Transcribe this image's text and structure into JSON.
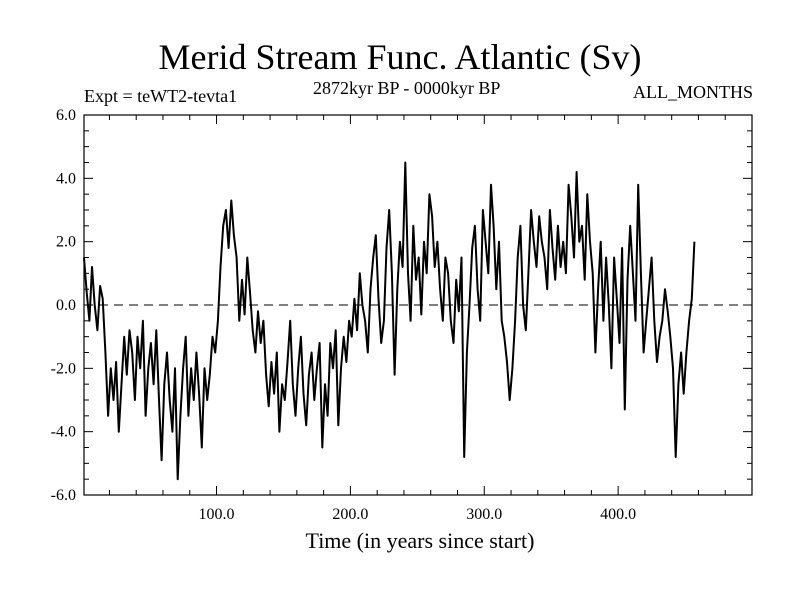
{
  "chart_data": {
    "type": "line",
    "title": "Merid Stream Func. Atlantic (Sv)",
    "subtitle_left": "Expt = teWT2-tevta1",
    "subtitle_center": "2872kyr BP - 0000kyr BP",
    "subtitle_right": "ALL_MONTHS",
    "xlabel": "Time (in years since start)",
    "ylabel": "",
    "xlim": [
      1,
      500
    ],
    "ylim": [
      -6,
      6
    ],
    "xticks": [
      100,
      200,
      300,
      400
    ],
    "xtick_labels": [
      "100.0",
      "200.0",
      "300.0",
      "400.0"
    ],
    "yticks": [
      -6,
      -4,
      -2,
      0,
      2,
      4,
      6
    ],
    "ytick_labels": [
      "-6.0",
      "-4.0",
      "-2.0",
      "0.0",
      "2.0",
      "4.0",
      "6.0"
    ],
    "reference_line": 0,
    "series": [
      {
        "name": "Merid Stream Func. Atlantic",
        "x_start": 1,
        "x_step": 2,
        "values": [
          1.5,
          0.4,
          -0.5,
          1.2,
          0.0,
          -0.8,
          0.6,
          0.2,
          -1.5,
          -3.5,
          -2.0,
          -3.0,
          -1.8,
          -4.0,
          -2.5,
          -1.0,
          -2.2,
          -0.8,
          -1.5,
          -3.0,
          -1.0,
          -2.0,
          -0.5,
          -3.5,
          -2.0,
          -1.2,
          -2.5,
          -0.8,
          -3.0,
          -4.9,
          -2.5,
          -1.5,
          -3.0,
          -4.0,
          -2.0,
          -5.5,
          -3.5,
          -2.0,
          -1.0,
          -3.5,
          -2.0,
          -3.0,
          -1.5,
          -2.8,
          -4.5,
          -2.0,
          -3.0,
          -2.2,
          -1.0,
          -1.5,
          -0.5,
          1.2,
          2.5,
          3.0,
          1.8,
          3.3,
          2.2,
          1.5,
          -0.5,
          0.8,
          -0.3,
          1.5,
          0.4,
          -0.8,
          -1.5,
          -0.2,
          -1.2,
          -0.5,
          -2.2,
          -3.2,
          -1.8,
          -2.8,
          -1.5,
          -4.0,
          -2.5,
          -3.0,
          -1.8,
          -0.5,
          -2.5,
          -3.5,
          -2.0,
          -1.0,
          -2.8,
          -3.8,
          -2.2,
          -1.5,
          -3.0,
          -2.0,
          -1.2,
          -4.5,
          -2.5,
          -3.5,
          -1.2,
          -2.0,
          -0.8,
          -3.8,
          -2.0,
          -1.0,
          -1.8,
          -0.5,
          -1.0,
          0.2,
          -0.8,
          1.0,
          0.0,
          -0.5,
          -1.5,
          0.5,
          1.5,
          2.2,
          0.2,
          -1.2,
          -0.5,
          1.8,
          3.0,
          1.0,
          -2.2,
          0.5,
          2.0,
          1.2,
          4.5,
          1.0,
          -0.5,
          2.5,
          0.8,
          1.5,
          -0.3,
          2.0,
          1.0,
          3.5,
          2.8,
          1.2,
          2.0,
          0.5,
          -0.5,
          1.5,
          1.0,
          -0.5,
          -1.2,
          0.8,
          -0.2,
          1.5,
          -4.8,
          -1.5,
          0.0,
          1.8,
          2.5,
          0.5,
          -0.5,
          3.0,
          2.0,
          1.0,
          3.8,
          2.5,
          0.5,
          2.0,
          -0.5,
          -1.0,
          -1.8,
          -3.0,
          -2.0,
          -0.5,
          1.5,
          2.5,
          0.0,
          -0.8,
          1.0,
          3.0,
          2.0,
          1.2,
          2.8,
          2.0,
          1.5,
          0.5,
          3.0,
          1.8,
          0.8,
          2.5,
          1.2,
          2.0,
          1.0,
          3.8,
          2.8,
          1.5,
          4.2,
          2.0,
          2.5,
          0.8,
          3.5,
          2.0,
          1.0,
          -1.5,
          0.5,
          2.0,
          -0.5,
          1.5,
          0.0,
          -2.0,
          1.5,
          0.2,
          -1.2,
          1.8,
          -3.3,
          0.8,
          2.5,
          1.0,
          -0.5,
          3.8,
          1.0,
          -1.5,
          -0.5,
          0.5,
          1.5,
          -0.5,
          -1.8,
          -1.0,
          -0.5,
          0.5,
          -0.2,
          -1.0,
          -2.0,
          -4.8,
          -2.5,
          -1.5,
          -2.8,
          -1.5,
          -0.5,
          0.2,
          2.0
        ]
      }
    ]
  }
}
